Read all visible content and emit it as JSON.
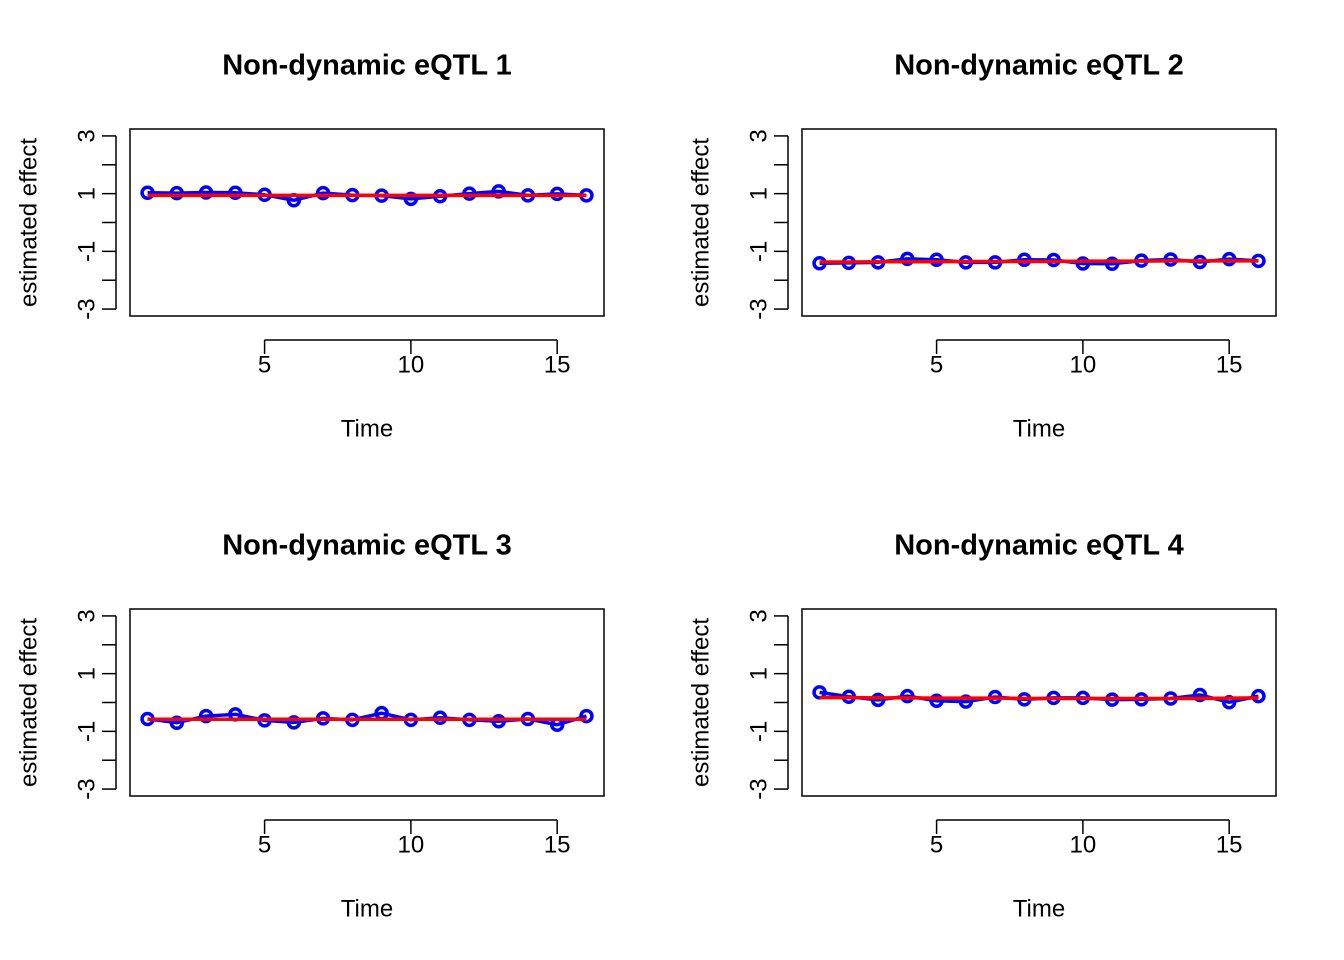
{
  "chart_data": [
    {
      "type": "line",
      "title": "Non-dynamic eQTL 1",
      "xlabel": "Time",
      "ylabel": "estimated effect",
      "xlim": [
        1,
        16
      ],
      "ylim": [
        -3,
        3
      ],
      "xticks": [
        5,
        10,
        15
      ],
      "yticks": [
        -3,
        -2,
        -1,
        0,
        1,
        2,
        3
      ],
      "ytick_labels": [
        "-3",
        "",
        "-1",
        "",
        "1",
        "",
        "3"
      ],
      "grid": false,
      "x": [
        1,
        2,
        3,
        4,
        5,
        6,
        7,
        8,
        9,
        10,
        11,
        12,
        13,
        14,
        15,
        16
      ],
      "series": [
        {
          "color": "#0000ff",
          "style": "line+circles",
          "values": [
            1.03,
            1.02,
            1.04,
            1.03,
            0.96,
            0.77,
            1.02,
            0.95,
            0.93,
            0.82,
            0.91,
            1.0,
            1.08,
            0.94,
            0.99,
            0.94
          ]
        },
        {
          "color": "#ff0000",
          "style": "line",
          "values": [
            0.94,
            0.94,
            0.94,
            0.94,
            0.94,
            0.94,
            0.94,
            0.94,
            0.94,
            0.94,
            0.94,
            0.94,
            0.94,
            0.94,
            0.94,
            0.94
          ]
        }
      ]
    },
    {
      "type": "line",
      "title": "Non-dynamic eQTL 2",
      "xlabel": "Time",
      "ylabel": "estimated effect",
      "xlim": [
        1,
        16
      ],
      "ylim": [
        -3,
        3
      ],
      "xticks": [
        5,
        10,
        15
      ],
      "yticks": [
        -3,
        -2,
        -1,
        0,
        1,
        2,
        3
      ],
      "ytick_labels": [
        "-3",
        "",
        "-1",
        "",
        "1",
        "",
        "3"
      ],
      "grid": false,
      "x": [
        1,
        2,
        3,
        4,
        5,
        6,
        7,
        8,
        9,
        10,
        11,
        12,
        13,
        14,
        15,
        16
      ],
      "series": [
        {
          "color": "#0000ff",
          "style": "line+circles",
          "values": [
            -1.41,
            -1.4,
            -1.38,
            -1.26,
            -1.29,
            -1.38,
            -1.38,
            -1.29,
            -1.3,
            -1.42,
            -1.43,
            -1.32,
            -1.28,
            -1.37,
            -1.27,
            -1.33
          ]
        },
        {
          "color": "#ff0000",
          "style": "line",
          "values": [
            -1.37,
            -1.37,
            -1.36,
            -1.36,
            -1.36,
            -1.35,
            -1.35,
            -1.35,
            -1.35,
            -1.34,
            -1.34,
            -1.34,
            -1.33,
            -1.33,
            -1.33,
            -1.33
          ]
        }
      ]
    },
    {
      "type": "line",
      "title": "Non-dynamic eQTL 3",
      "xlabel": "Time",
      "ylabel": "estimated effect",
      "xlim": [
        1,
        16
      ],
      "ylim": [
        -3,
        3
      ],
      "xticks": [
        5,
        10,
        15
      ],
      "yticks": [
        -3,
        -2,
        -1,
        0,
        1,
        2,
        3
      ],
      "ytick_labels": [
        "-3",
        "",
        "-1",
        "",
        "1",
        "",
        "3"
      ],
      "grid": false,
      "x": [
        1,
        2,
        3,
        4,
        5,
        6,
        7,
        8,
        9,
        10,
        11,
        12,
        13,
        14,
        15,
        16
      ],
      "series": [
        {
          "color": "#0000ff",
          "style": "line+circles",
          "values": [
            -0.57,
            -0.7,
            -0.47,
            -0.41,
            -0.62,
            -0.69,
            -0.55,
            -0.6,
            -0.37,
            -0.6,
            -0.53,
            -0.6,
            -0.65,
            -0.57,
            -0.77,
            -0.47
          ]
        },
        {
          "color": "#ff0000",
          "style": "line",
          "values": [
            -0.58,
            -0.58,
            -0.58,
            -0.58,
            -0.58,
            -0.58,
            -0.58,
            -0.58,
            -0.58,
            -0.58,
            -0.58,
            -0.58,
            -0.58,
            -0.58,
            -0.58,
            -0.58
          ]
        }
      ]
    },
    {
      "type": "line",
      "title": "Non-dynamic eQTL 4",
      "xlabel": "Time",
      "ylabel": "estimated effect",
      "xlim": [
        1,
        16
      ],
      "ylim": [
        -3,
        3
      ],
      "xticks": [
        5,
        10,
        15
      ],
      "yticks": [
        -3,
        -2,
        -1,
        0,
        1,
        2,
        3
      ],
      "ytick_labels": [
        "-3",
        "",
        "-1",
        "",
        "1",
        "",
        "3"
      ],
      "grid": false,
      "x": [
        1,
        2,
        3,
        4,
        5,
        6,
        7,
        8,
        9,
        10,
        11,
        12,
        13,
        14,
        15,
        16
      ],
      "series": [
        {
          "color": "#0000ff",
          "style": "line+circles",
          "values": [
            0.35,
            0.2,
            0.09,
            0.22,
            0.06,
            0.03,
            0.19,
            0.11,
            0.16,
            0.16,
            0.1,
            0.11,
            0.14,
            0.26,
            0.01,
            0.22
          ]
        },
        {
          "color": "#ff0000",
          "style": "line",
          "values": [
            0.17,
            0.17,
            0.16,
            0.16,
            0.15,
            0.15,
            0.15,
            0.14,
            0.14,
            0.14,
            0.14,
            0.14,
            0.14,
            0.14,
            0.15,
            0.16
          ]
        }
      ]
    }
  ]
}
